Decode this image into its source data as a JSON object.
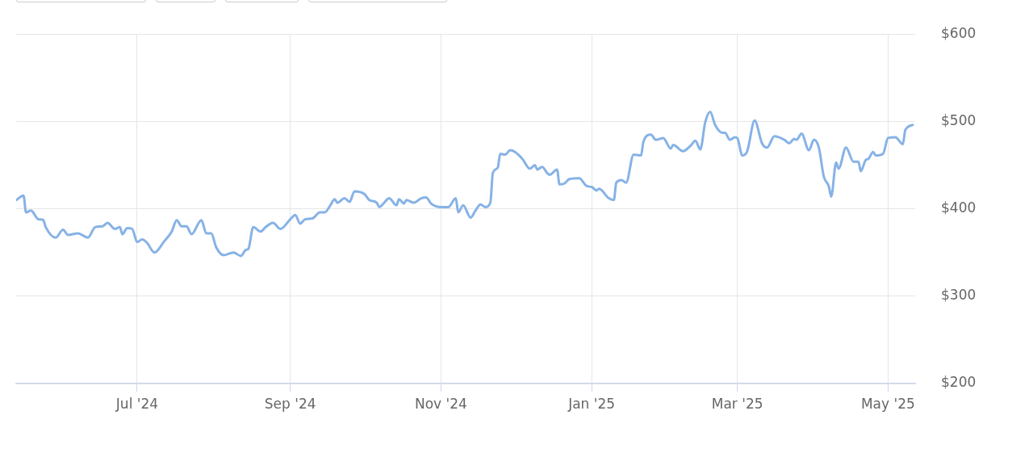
{
  "chart_data": {
    "type": "line",
    "x": [
      "2024-05-13",
      "2024-05-16",
      "2024-05-17",
      "2024-05-19",
      "2024-05-22",
      "2024-05-24",
      "2024-05-25",
      "2024-05-29",
      "2024-06-01",
      "2024-06-03",
      "2024-06-07",
      "2024-06-11",
      "2024-06-14",
      "2024-06-17",
      "2024-06-19",
      "2024-06-22",
      "2024-06-24",
      "2024-06-25",
      "2024-06-27",
      "2024-06-29",
      "2024-07-01",
      "2024-07-03",
      "2024-07-05",
      "2024-07-08",
      "2024-07-12",
      "2024-07-15",
      "2024-07-17",
      "2024-07-19",
      "2024-07-21",
      "2024-07-23",
      "2024-07-27",
      "2024-07-29",
      "2024-07-31",
      "2024-08-02",
      "2024-08-05",
      "2024-08-09",
      "2024-08-12",
      "2024-08-14",
      "2024-08-15",
      "2024-08-17",
      "2024-08-20",
      "2024-08-22",
      "2024-08-25",
      "2024-08-28",
      "2024-09-01",
      "2024-09-03",
      "2024-09-05",
      "2024-09-07",
      "2024-09-10",
      "2024-09-13",
      "2024-09-15",
      "2024-09-17",
      "2024-09-19",
      "2024-09-20",
      "2024-09-23",
      "2024-09-25",
      "2024-09-27",
      "2024-10-01",
      "2024-10-03",
      "2024-10-06",
      "2024-10-07",
      "2024-10-09",
      "2024-10-11",
      "2024-10-14",
      "2024-10-15",
      "2024-10-17",
      "2024-10-18",
      "2024-10-21",
      "2024-10-24",
      "2024-10-26",
      "2024-10-28",
      "2024-11-01",
      "2024-11-04",
      "2024-11-07",
      "2024-11-08",
      "2024-11-10",
      "2024-11-13",
      "2024-11-15",
      "2024-11-17",
      "2024-11-19",
      "2024-11-21",
      "2024-11-22",
      "2024-11-24",
      "2024-11-25",
      "2024-11-27",
      "2024-11-29",
      "2024-12-01",
      "2024-12-04",
      "2024-12-07",
      "2024-12-09",
      "2024-12-10",
      "2024-12-12",
      "2024-12-14",
      "2024-12-15",
      "2024-12-18",
      "2024-12-19",
      "2024-12-21",
      "2024-12-23",
      "2024-12-27",
      "2024-12-30",
      "2025-01-01",
      "2025-01-03",
      "2025-01-04",
      "2025-01-08",
      "2025-01-10",
      "2025-01-11",
      "2025-01-13",
      "2025-01-15",
      "2025-01-18",
      "2025-01-21",
      "2025-01-22",
      "2025-01-25",
      "2025-01-27",
      "2025-01-30",
      "2025-02-02",
      "2025-02-03",
      "2025-02-07",
      "2025-02-10",
      "2025-02-12",
      "2025-02-14",
      "2025-02-16",
      "2025-02-18",
      "2025-02-20",
      "2025-02-23",
      "2025-02-24",
      "2025-02-26",
      "2025-02-28",
      "2025-03-01",
      "2025-03-03",
      "2025-03-05",
      "2025-03-08",
      "2025-03-11",
      "2025-03-13",
      "2025-03-16",
      "2025-03-20",
      "2025-03-22",
      "2025-03-24",
      "2025-03-25",
      "2025-03-27",
      "2025-03-30",
      "2025-04-01",
      "2025-04-03",
      "2025-04-05",
      "2025-04-07",
      "2025-04-08",
      "2025-04-10",
      "2025-04-11",
      "2025-04-14",
      "2025-04-17",
      "2025-04-19",
      "2025-04-20",
      "2025-04-22",
      "2025-04-23",
      "2025-04-25",
      "2025-04-26",
      "2025-04-29",
      "2025-05-01",
      "2025-05-04",
      "2025-05-07",
      "2025-05-08",
      "2025-05-11"
    ],
    "series": [
      {
        "color": "#86b2e6",
        "values": [
          410,
          415,
          396,
          398,
          388,
          387,
          379,
          367,
          376,
          370,
          372,
          367,
          379,
          380,
          384,
          377,
          379,
          371,
          378,
          377,
          362,
          365,
          361,
          350,
          363,
          374,
          387,
          380,
          380,
          371,
          387,
          372,
          372,
          356,
          347,
          350,
          346,
          353,
          354,
          379,
          374,
          379,
          384,
          377,
          388,
          393,
          383,
          388,
          389,
          396,
          396,
          403,
          411,
          407,
          412,
          408,
          420,
          417,
          410,
          407,
          402,
          407,
          412,
          404,
          411,
          406,
          410,
          407,
          412,
          413,
          406,
          402,
          402,
          412,
          396,
          404,
          390,
          398,
          405,
          402,
          407,
          441,
          447,
          463,
          462,
          467,
          465,
          457,
          446,
          450,
          445,
          448,
          441,
          439,
          445,
          428,
          429,
          434,
          435,
          426,
          425,
          421,
          423,
          412,
          410,
          430,
          433,
          430,
          462,
          461,
          477,
          485,
          479,
          481,
          469,
          473,
          466,
          472,
          478,
          468,
          499,
          511,
          496,
          487,
          487,
          479,
          482,
          481,
          461,
          466,
          501,
          475,
          470,
          483,
          479,
          475,
          480,
          479,
          486,
          467,
          479,
          470,
          437,
          426,
          414,
          453,
          446,
          470,
          454,
          454,
          443,
          456,
          457,
          465,
          461,
          463,
          481,
          482,
          474,
          490,
          496
        ]
      }
    ],
    "xlim": [
      "2024-05-13",
      "2025-05-12"
    ],
    "xticks": [
      {
        "value": "2024-07-01",
        "label": "Jul '24"
      },
      {
        "value": "2024-09-01",
        "label": "Sep '24"
      },
      {
        "value": "2024-11-01",
        "label": "Nov '24"
      },
      {
        "value": "2025-01-01",
        "label": "Jan '25"
      },
      {
        "value": "2025-03-01",
        "label": "Mar '25"
      },
      {
        "value": "2025-05-01",
        "label": "May '25"
      }
    ],
    "ylim": [
      200,
      600
    ],
    "yticks": [
      {
        "value": 200,
        "label": "$200"
      },
      {
        "value": 300,
        "label": "$300"
      },
      {
        "value": 400,
        "label": "$400"
      },
      {
        "value": 500,
        "label": "$500"
      },
      {
        "value": 600,
        "label": "$600"
      }
    ],
    "grid": true,
    "marker": "none",
    "line_style": "solid",
    "legend": false
  }
}
